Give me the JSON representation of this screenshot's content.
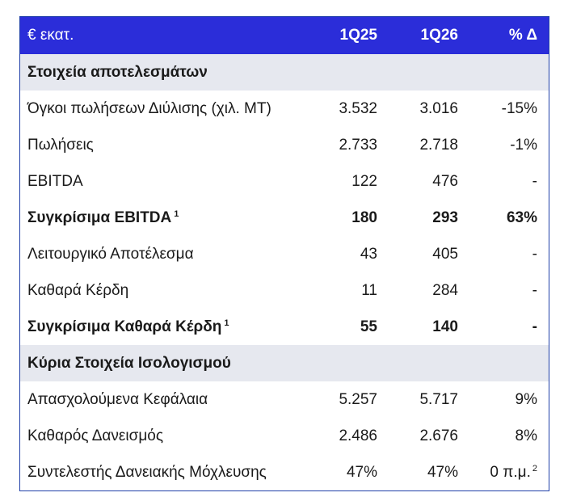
{
  "header": {
    "label": "€ εκατ.",
    "col1": "1Q25",
    "col2": "1Q26",
    "col3": "% Δ"
  },
  "sections": [
    {
      "title": "Στοιχεία αποτελεσμάτων"
    },
    {
      "title": "Κύρια Στοιχεία Ισολογισμού"
    }
  ],
  "rows": [
    {
      "label": "Όγκοι πωλήσεων Διύλισης (χιλ. ΜΤ)",
      "v1": "3.532",
      "v2": "3.016",
      "v3": "-15%"
    },
    {
      "label": "Πωλήσεις",
      "v1": "2.733",
      "v2": "2.718",
      "v3": "-1%"
    },
    {
      "label": "EBITDA",
      "v1": "122",
      "v2": "476",
      "v3": "-"
    },
    {
      "label": "Συγκρίσιμα EBITDA",
      "note": "1",
      "v1": "180",
      "v2": "293",
      "v3": "63%"
    },
    {
      "label": "Λειτουργικό Αποτέλεσμα",
      "v1": "43",
      "v2": "405",
      "v3": "-"
    },
    {
      "label": "Καθαρά Κέρδη",
      "v1": "11",
      "v2": "284",
      "v3": "-"
    },
    {
      "label": "Συγκρίσιμα Καθαρά Κέρδη",
      "note": "1",
      "v1": "55",
      "v2": "140",
      "v3": "-"
    },
    {
      "label": "Απασχολούμενα Κεφάλαια",
      "v1": "5.257",
      "v2": "5.717",
      "v3": "9%"
    },
    {
      "label": "Καθαρός Δανεισμός",
      "v1": "2.486",
      "v2": "2.676",
      "v3": "8%"
    },
    {
      "label": "Συντελεστής Δανειακής Μόχλευσης",
      "v1": "47%",
      "v2": "47%",
      "v3": "0 π.μ.",
      "v3_note": "2"
    }
  ]
}
